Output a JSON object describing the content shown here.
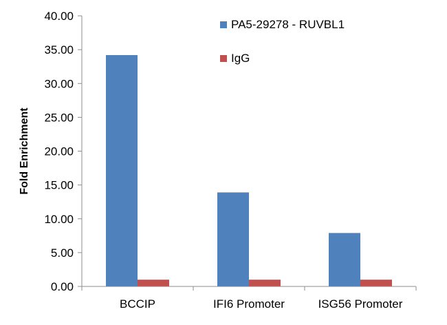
{
  "chart_data": {
    "type": "bar",
    "title": "",
    "xlabel": "",
    "ylabel": "Fold Enrichment",
    "categories": [
      "BCCIP",
      "IFI6 Promoter",
      "ISG56 Promoter"
    ],
    "series": [
      {
        "name": "PA5-29278 - RUVBL1",
        "color": "#4f81bd",
        "values": [
          34.2,
          13.9,
          7.9
        ]
      },
      {
        "name": "IgG",
        "color": "#c0504d",
        "values": [
          1.0,
          1.0,
          1.0
        ]
      }
    ],
    "ylim": [
      0,
      40
    ],
    "yticks": [
      "0.00",
      "5.00",
      "10.00",
      "15.00",
      "20.00",
      "25.00",
      "30.00",
      "35.00",
      "40.00"
    ],
    "grid": false,
    "legend_position": "top-right"
  }
}
